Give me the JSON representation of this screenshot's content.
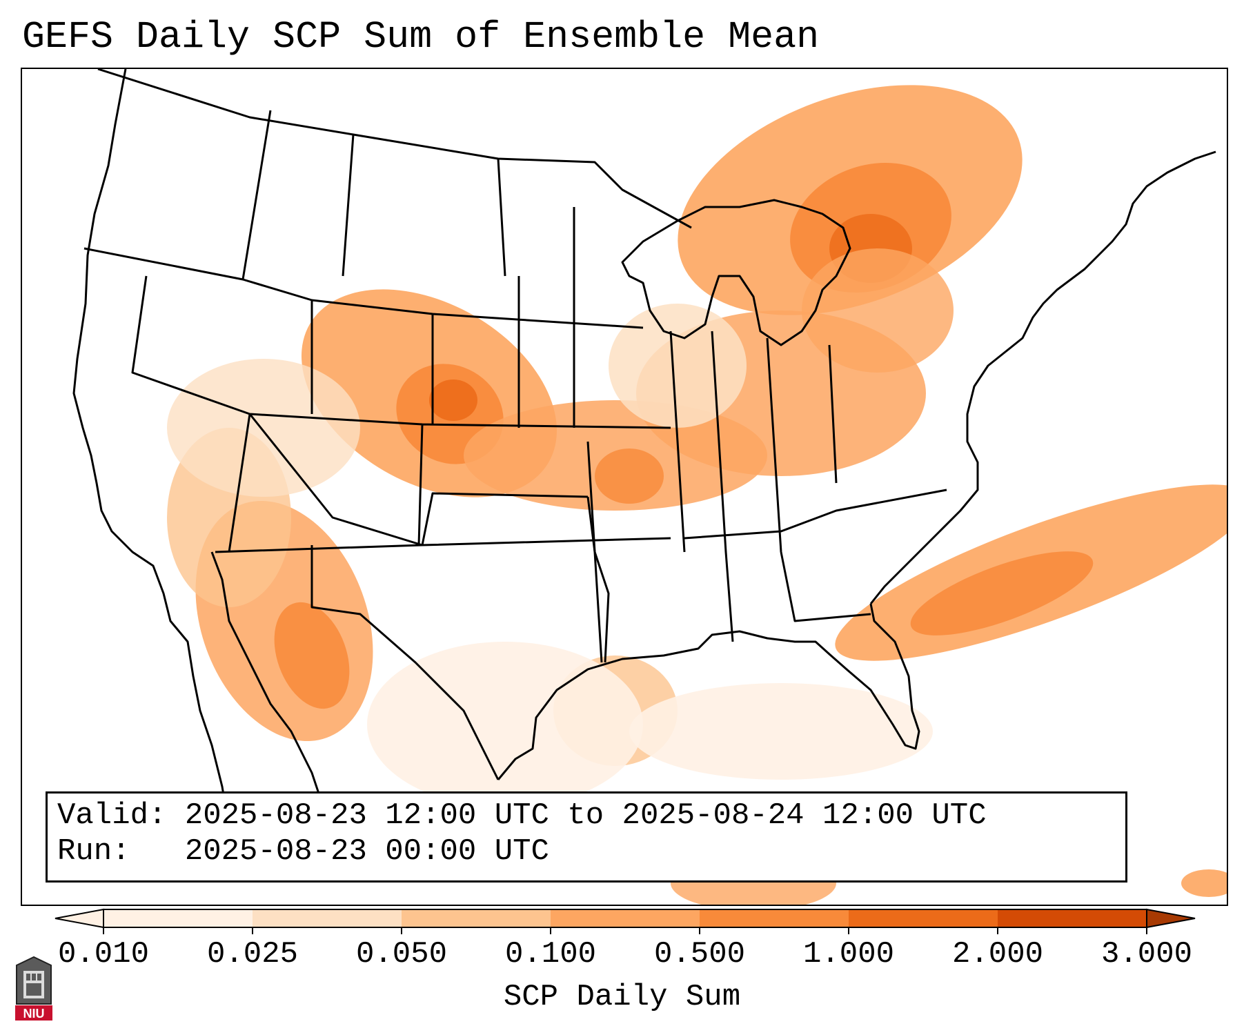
{
  "title": "GEFS Daily SCP Sum of Ensemble Mean",
  "info": {
    "valid_line": "Valid: 2025-08-23 12:00 UTC to 2025-08-24 12:00 UTC",
    "run_line": "Run:   2025-08-23 00:00 UTC"
  },
  "colorbar": {
    "label": "SCP Daily Sum",
    "ticks": [
      "0.010",
      "0.025",
      "0.050",
      "0.100",
      "0.500",
      "1.000",
      "2.000",
      "3.000"
    ],
    "colors": [
      "#fff1e4",
      "#fde0c3",
      "#fdc48f",
      "#fda661",
      "#f88a3a",
      "#ec6b19",
      "#d44b05",
      "#a83a03"
    ],
    "extend": "both"
  },
  "logo": {
    "text": "NIU"
  },
  "map": {
    "region": "Continental United States",
    "field": "SCP daily sum",
    "highlights": [
      "Upper Great Lakes and Ontario/Quebec",
      "Colorado and Wyoming high plains",
      "Kansas and Nebraska",
      "Illinois, Indiana and Michigan",
      "Southeast coast into the Atlantic",
      "Arizona and Baja California"
    ]
  }
}
